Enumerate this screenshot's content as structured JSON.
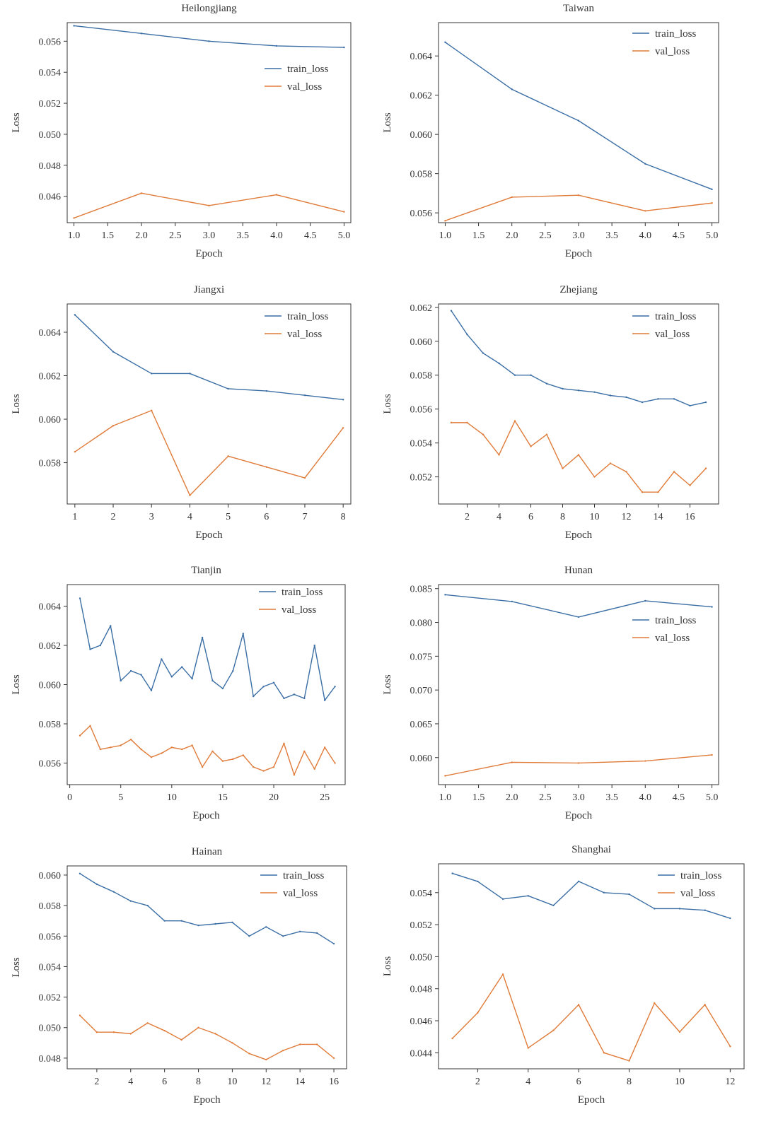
{
  "colors": {
    "train": "#3a6ea5",
    "val": "#e07b39",
    "frame": "#333333"
  },
  "chart_data": [
    {
      "type": "line",
      "title": "Heilongjiang",
      "xlabel": "Epoch",
      "ylabel": "Loss",
      "x": [
        1,
        2,
        3,
        4,
        5
      ],
      "xlim": [
        0.9,
        5.1
      ],
      "ylim": [
        0.0443,
        0.0572
      ],
      "xticks": [
        1.0,
        1.5,
        2.0,
        2.5,
        3.0,
        3.5,
        4.0,
        4.5,
        5.0
      ],
      "xtick_labels": [
        "1.0",
        "1.5",
        "2.0",
        "2.5",
        "3.0",
        "3.5",
        "4.0",
        "4.5",
        "5.0"
      ],
      "yticks": [
        0.046,
        0.048,
        0.05,
        0.052,
        0.054,
        0.056
      ],
      "ytick_labels": [
        "0.046",
        "0.048",
        "0.050",
        "0.052",
        "0.054",
        "0.056"
      ],
      "legend": "center-right",
      "grid": false,
      "series": [
        {
          "name": "train_loss",
          "values": [
            0.057,
            0.0565,
            0.056,
            0.0557,
            0.0556
          ]
        },
        {
          "name": "val_loss",
          "values": [
            0.0446,
            0.0462,
            0.0454,
            0.0461,
            0.045
          ]
        }
      ]
    },
    {
      "type": "line",
      "title": "Taiwan",
      "xlabel": "Epoch",
      "ylabel": "Loss",
      "x": [
        1,
        2,
        3,
        4,
        5
      ],
      "xlim": [
        0.9,
        5.1
      ],
      "ylim": [
        0.0555,
        0.0657
      ],
      "xticks": [
        1.0,
        1.5,
        2.0,
        2.5,
        3.0,
        3.5,
        4.0,
        4.5,
        5.0
      ],
      "xtick_labels": [
        "1.0",
        "1.5",
        "2.0",
        "2.5",
        "3.0",
        "3.5",
        "4.0",
        "4.5",
        "5.0"
      ],
      "yticks": [
        0.056,
        0.058,
        0.06,
        0.062,
        0.064
      ],
      "ytick_labels": [
        "0.056",
        "0.058",
        "0.060",
        "0.062",
        "0.064"
      ],
      "legend": "top-right",
      "grid": false,
      "series": [
        {
          "name": "train_loss",
          "values": [
            0.0647,
            0.0623,
            0.0607,
            0.0585,
            0.0572
          ]
        },
        {
          "name": "val_loss",
          "values": [
            0.0556,
            0.0568,
            0.0569,
            0.0561,
            0.0565
          ]
        }
      ]
    },
    {
      "type": "line",
      "title": "Jiangxi",
      "xlabel": "Epoch",
      "ylabel": "Loss",
      "x": [
        1,
        2,
        3,
        4,
        5,
        6,
        7,
        8
      ],
      "xlim": [
        0.8,
        8.2
      ],
      "ylim": [
        0.0561,
        0.0653
      ],
      "xticks": [
        1,
        2,
        3,
        4,
        5,
        6,
        7,
        8
      ],
      "xtick_labels": [
        "1",
        "2",
        "3",
        "4",
        "5",
        "6",
        "7",
        "8"
      ],
      "yticks": [
        0.058,
        0.06,
        0.062,
        0.064
      ],
      "ytick_labels": [
        "0.058",
        "0.060",
        "0.062",
        "0.064"
      ],
      "legend": "top-right",
      "grid": false,
      "series": [
        {
          "name": "train_loss",
          "values": [
            0.0648,
            0.0631,
            0.0621,
            0.0621,
            0.0614,
            0.0613,
            0.0611,
            0.0609
          ]
        },
        {
          "name": "val_loss",
          "values": [
            0.0585,
            0.0597,
            0.0604,
            0.0565,
            0.0583,
            0.0578,
            0.0573,
            0.0596
          ]
        }
      ]
    },
    {
      "type": "line",
      "title": "Zhejiang",
      "xlabel": "Epoch",
      "ylabel": "Loss",
      "x": [
        1,
        2,
        3,
        4,
        5,
        6,
        7,
        8,
        9,
        10,
        11,
        12,
        13,
        14,
        15,
        16,
        17
      ],
      "xlim": [
        0.2,
        17.8
      ],
      "ylim": [
        0.0504,
        0.0622
      ],
      "xticks": [
        2,
        4,
        6,
        8,
        10,
        12,
        14,
        16
      ],
      "xtick_labels": [
        "2",
        "4",
        "6",
        "8",
        "10",
        "12",
        "14",
        "16"
      ],
      "yticks": [
        0.052,
        0.054,
        0.056,
        0.058,
        0.06,
        0.062
      ],
      "ytick_labels": [
        "0.052",
        "0.054",
        "0.056",
        "0.058",
        "0.060",
        "0.062"
      ],
      "legend": "top-right",
      "grid": false,
      "series": [
        {
          "name": "train_loss",
          "values": [
            0.0618,
            0.0604,
            0.0593,
            0.0587,
            0.058,
            0.058,
            0.0575,
            0.0572,
            0.0571,
            0.057,
            0.0568,
            0.0567,
            0.0564,
            0.0566,
            0.0566,
            0.0562,
            0.0564
          ]
        },
        {
          "name": "val_loss",
          "values": [
            0.0552,
            0.0552,
            0.0545,
            0.0533,
            0.0553,
            0.0538,
            0.0545,
            0.0525,
            0.0533,
            0.052,
            0.0528,
            0.0523,
            0.0511,
            0.0511,
            0.0523,
            0.0515,
            0.0525
          ]
        }
      ]
    },
    {
      "type": "line",
      "title": "Tianjin",
      "xlabel": "Epoch",
      "ylabel": "Loss",
      "x": [
        1,
        2,
        3,
        4,
        5,
        6,
        7,
        8,
        9,
        10,
        11,
        12,
        13,
        14,
        15,
        16,
        17,
        18,
        19,
        20,
        21,
        22,
        23,
        24,
        25,
        26
      ],
      "xlim": [
        -0.25,
        27.0
      ],
      "ylim": [
        0.0549,
        0.0651
      ],
      "xticks": [
        0,
        5,
        10,
        15,
        20,
        25
      ],
      "xtick_labels": [
        "0",
        "5",
        "10",
        "15",
        "20",
        "25"
      ],
      "yticks": [
        0.056,
        0.058,
        0.06,
        0.062,
        0.064
      ],
      "ytick_labels": [
        "0.056",
        "0.058",
        "0.060",
        "0.062",
        "0.064"
      ],
      "legend": "top-right",
      "grid": false,
      "series": [
        {
          "name": "train_loss",
          "values": [
            0.0644,
            0.0618,
            0.062,
            0.063,
            0.0602,
            0.0607,
            0.0605,
            0.0597,
            0.0613,
            0.0604,
            0.0609,
            0.0603,
            0.0624,
            0.0602,
            0.0598,
            0.0607,
            0.0626,
            0.0594,
            0.0599,
            0.0601,
            0.0593,
            0.0595,
            0.0593,
            0.062,
            0.0592,
            0.0599
          ]
        },
        {
          "name": "val_loss",
          "values": [
            0.0574,
            0.0579,
            0.0567,
            0.0568,
            0.0569,
            0.0572,
            0.0567,
            0.0563,
            0.0565,
            0.0568,
            0.0567,
            0.0569,
            0.0558,
            0.0566,
            0.0561,
            0.0562,
            0.0564,
            0.0558,
            0.0556,
            0.0558,
            0.057,
            0.0554,
            0.0566,
            0.0557,
            0.0568,
            0.056
          ]
        }
      ]
    },
    {
      "type": "line",
      "title": "Hunan",
      "xlabel": "Epoch",
      "ylabel": "Loss",
      "x": [
        1,
        2,
        3,
        4,
        5
      ],
      "xlim": [
        0.9,
        5.1
      ],
      "ylim": [
        0.056,
        0.0856
      ],
      "xticks": [
        1.0,
        1.5,
        2.0,
        2.5,
        3.0,
        3.5,
        4.0,
        4.5,
        5.0
      ],
      "xtick_labels": [
        "1.0",
        "1.5",
        "2.0",
        "2.5",
        "3.0",
        "3.5",
        "4.0",
        "4.5",
        "5.0"
      ],
      "yticks": [
        0.06,
        0.065,
        0.07,
        0.075,
        0.08,
        0.085
      ],
      "ytick_labels": [
        "0.060",
        "0.065",
        "0.070",
        "0.075",
        "0.080",
        "0.085"
      ],
      "legend": "center-right",
      "grid": false,
      "series": [
        {
          "name": "train_loss",
          "values": [
            0.0841,
            0.0831,
            0.0808,
            0.0832,
            0.0823
          ]
        },
        {
          "name": "val_loss",
          "values": [
            0.0573,
            0.0593,
            0.0592,
            0.0595,
            0.0604
          ]
        }
      ]
    },
    {
      "type": "line",
      "title": "Hainan",
      "xlabel": "Epoch",
      "ylabel": "Loss",
      "x": [
        1,
        2,
        3,
        4,
        5,
        6,
        7,
        8,
        9,
        10,
        11,
        12,
        13,
        14,
        15,
        16
      ],
      "xlim": [
        0.25,
        16.75
      ],
      "ylim": [
        0.0473,
        0.0606
      ],
      "xticks": [
        2,
        4,
        6,
        8,
        10,
        12,
        14,
        16
      ],
      "xtick_labels": [
        "2",
        "4",
        "6",
        "8",
        "10",
        "12",
        "14",
        "16"
      ],
      "yticks": [
        0.048,
        0.05,
        0.052,
        0.054,
        0.056,
        0.058,
        0.06
      ],
      "ytick_labels": [
        "0.048",
        "0.050",
        "0.052",
        "0.054",
        "0.056",
        "0.058",
        "0.060"
      ],
      "legend": "top-right",
      "grid": false,
      "series": [
        {
          "name": "train_loss",
          "values": [
            0.0601,
            0.0594,
            0.0589,
            0.0583,
            0.058,
            0.057,
            0.057,
            0.0567,
            0.0568,
            0.0569,
            0.056,
            0.0566,
            0.056,
            0.0563,
            0.0562,
            0.0555
          ]
        },
        {
          "name": "val_loss",
          "values": [
            0.0508,
            0.0497,
            0.0497,
            0.0496,
            0.0503,
            0.0498,
            0.0492,
            0.05,
            0.0496,
            0.049,
            0.0483,
            0.0479,
            0.0485,
            0.0489,
            0.0489,
            0.048
          ]
        }
      ]
    },
    {
      "type": "line",
      "title": "Shanghai",
      "xlabel": "Epoch",
      "ylabel": "Loss",
      "x": [
        1,
        2,
        3,
        4,
        5,
        6,
        7,
        8,
        9,
        10,
        11,
        12
      ],
      "xlim": [
        0.45,
        12.55
      ],
      "ylim": [
        0.043,
        0.0558
      ],
      "xticks": [
        2,
        4,
        6,
        8,
        10,
        12
      ],
      "xtick_labels": [
        "2",
        "4",
        "6",
        "8",
        "10",
        "12"
      ],
      "yticks": [
        0.044,
        0.046,
        0.048,
        0.05,
        0.052,
        0.054
      ],
      "ytick_labels": [
        "0.044",
        "0.046",
        "0.048",
        "0.050",
        "0.052",
        "0.054"
      ],
      "legend": "top-right",
      "grid": false,
      "series": [
        {
          "name": "train_loss",
          "values": [
            0.0552,
            0.0547,
            0.0536,
            0.0538,
            0.0532,
            0.0547,
            0.054,
            0.0539,
            0.053,
            0.053,
            0.0529,
            0.0524
          ]
        },
        {
          "name": "val_loss",
          "values": [
            0.0449,
            0.0465,
            0.0489,
            0.0443,
            0.0454,
            0.047,
            0.044,
            0.0435,
            0.0471,
            0.0453,
            0.047,
            0.0444
          ]
        }
      ]
    }
  ]
}
